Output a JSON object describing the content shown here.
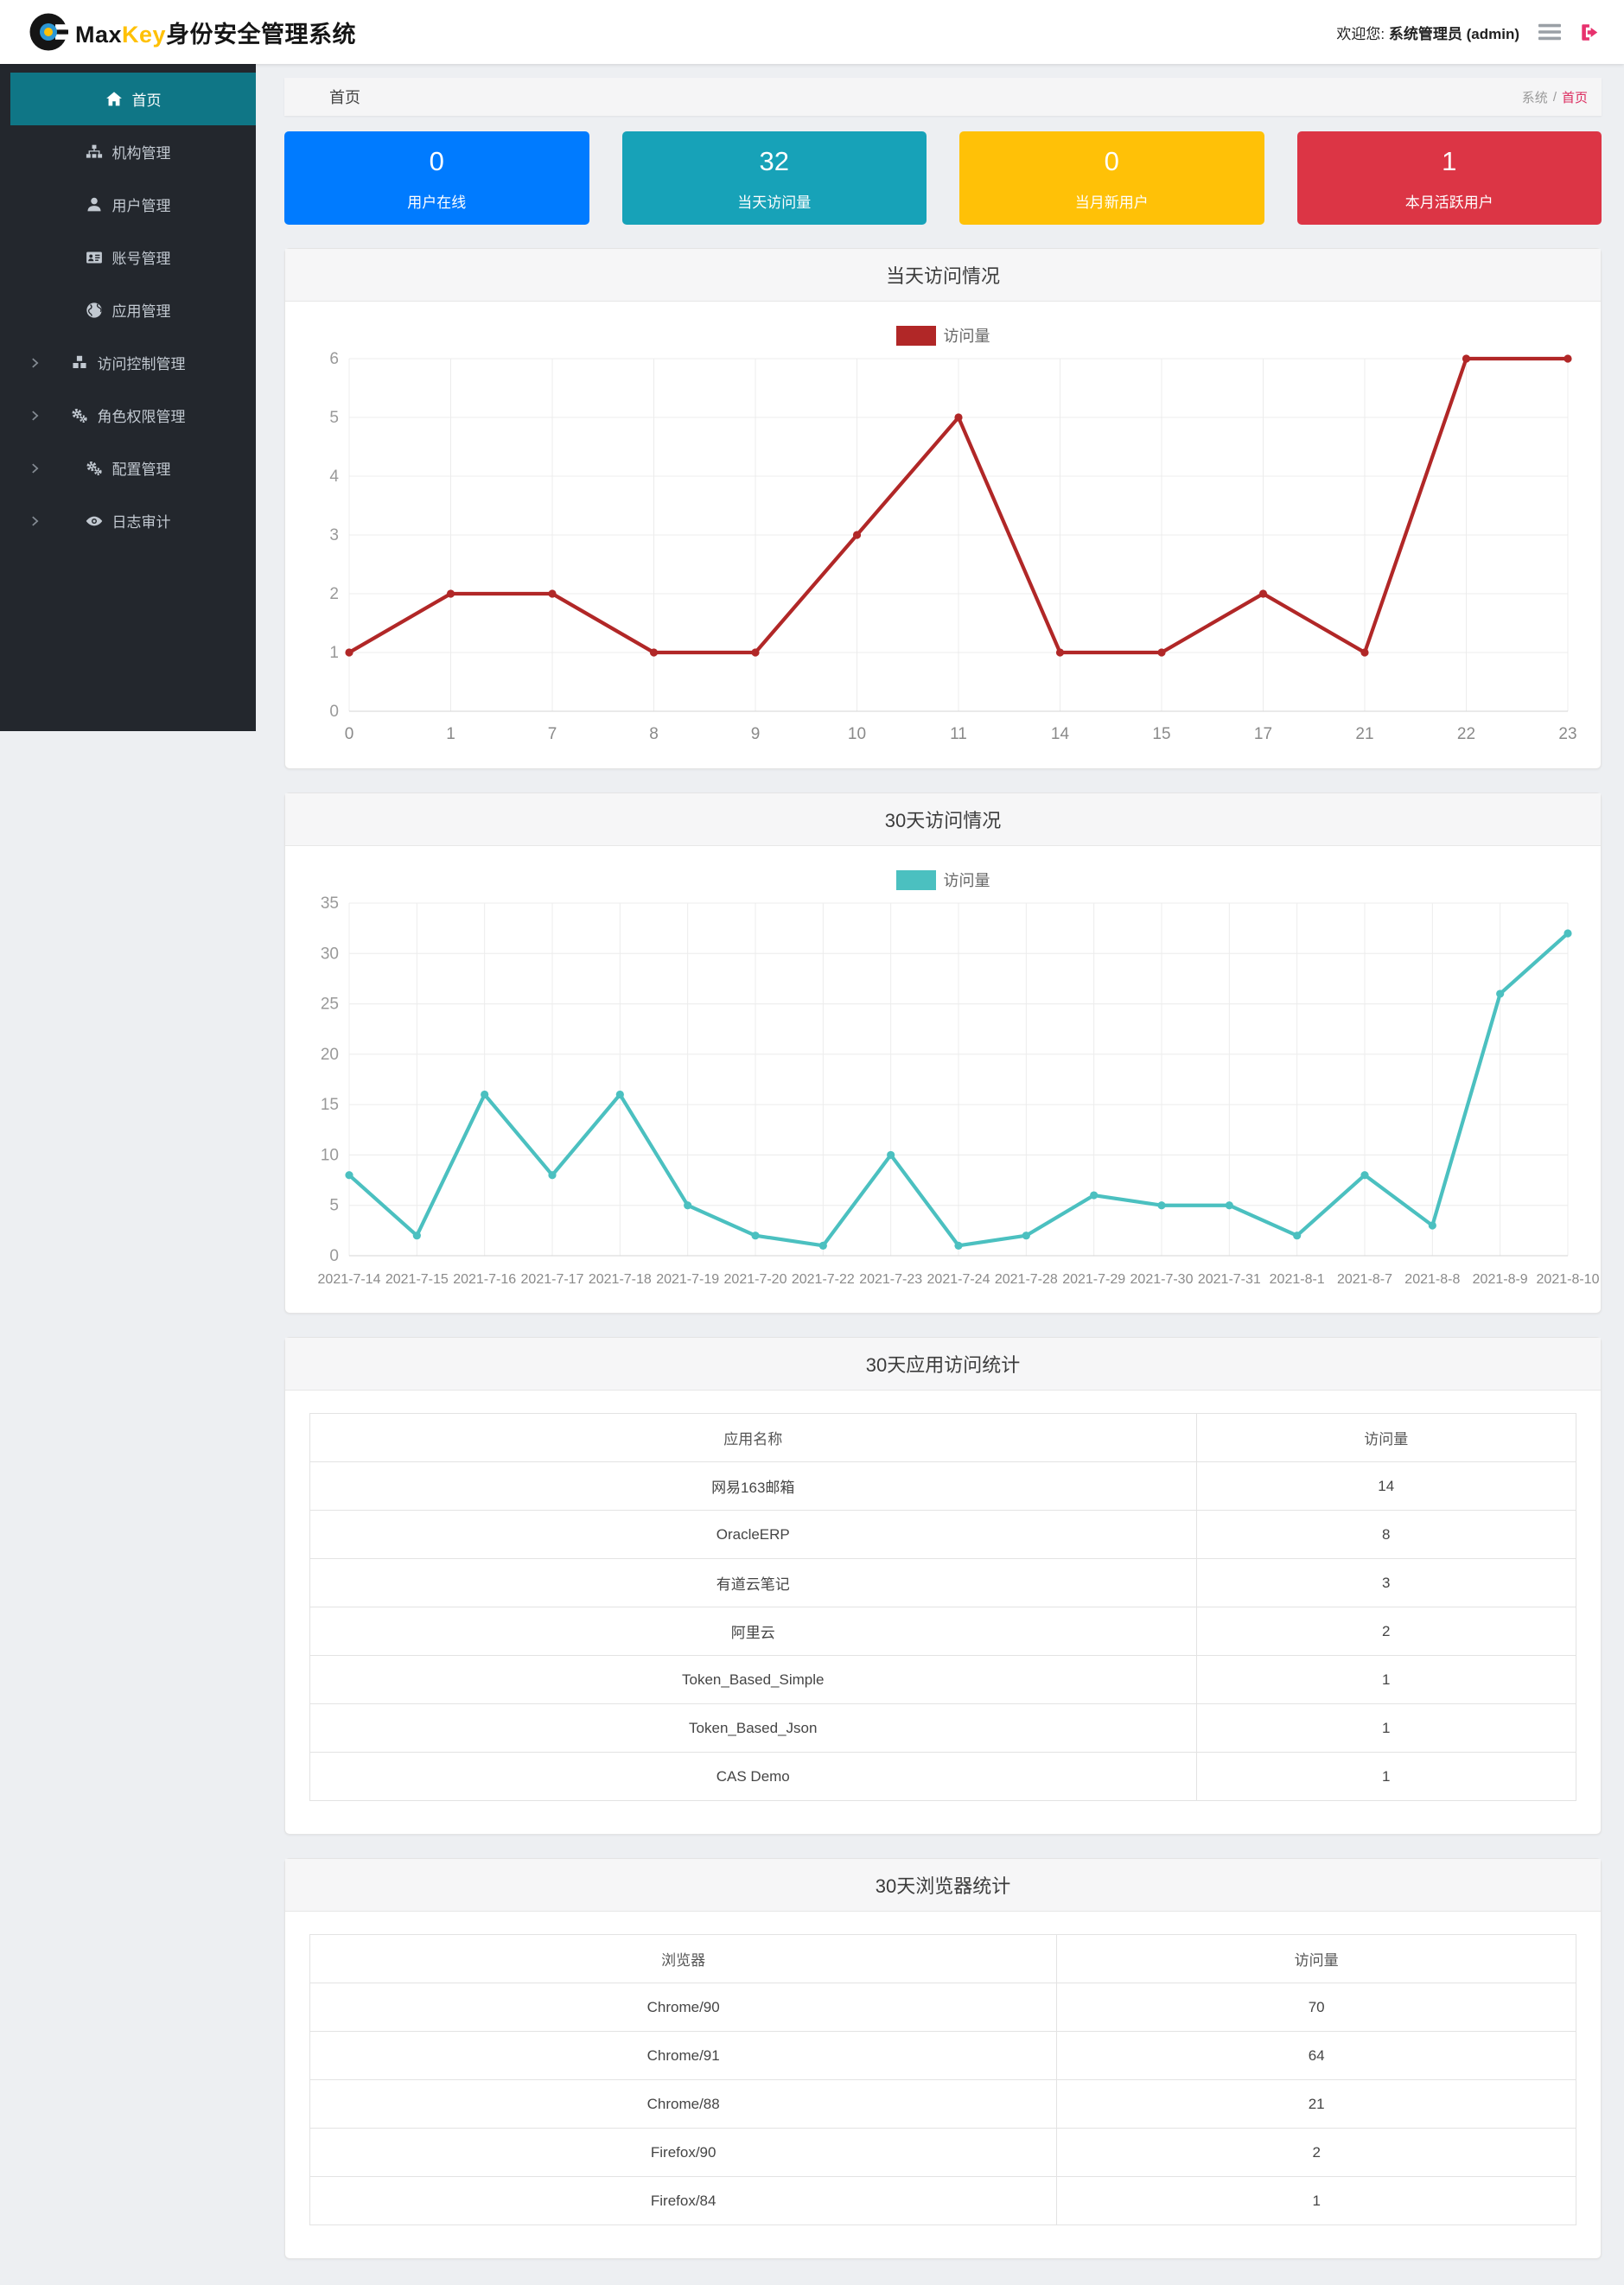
{
  "header": {
    "brand": {
      "title_black": "Max",
      "title_accent": "Key",
      "title_suffix": "身份安全管理系统",
      "accent_color": "#ffc107"
    },
    "welcome_prefix": "欢迎您:",
    "user": "系统管理员 (admin)",
    "logout_color": "#e7316d"
  },
  "sidebar": {
    "bg": "#23272d",
    "active_bg": "#0f7686",
    "items": [
      {
        "name": "sidebar-item-home",
        "label": "首页",
        "icon": "home-icon",
        "active": true,
        "expandable": false
      },
      {
        "name": "sidebar-item-organization",
        "label": "机构管理",
        "icon": "sitemap-icon",
        "active": false,
        "expandable": false
      },
      {
        "name": "sidebar-item-users",
        "label": "用户管理",
        "icon": "user-icon",
        "active": false,
        "expandable": false
      },
      {
        "name": "sidebar-item-accounts",
        "label": "账号管理",
        "icon": "id-card-icon",
        "active": false,
        "expandable": false
      },
      {
        "name": "sidebar-item-applications",
        "label": "应用管理",
        "icon": "globe-icon",
        "active": false,
        "expandable": false
      },
      {
        "name": "sidebar-item-access-control",
        "label": "访问控制管理",
        "icon": "cubes-icon",
        "active": false,
        "expandable": true
      },
      {
        "name": "sidebar-item-role-permission",
        "label": "角色权限管理",
        "icon": "cogs-icon",
        "active": false,
        "expandable": true
      },
      {
        "name": "sidebar-item-configuration",
        "label": "配置管理",
        "icon": "cogs-icon",
        "active": false,
        "expandable": true
      },
      {
        "name": "sidebar-item-audit-log",
        "label": "日志审计",
        "icon": "eye-icon",
        "active": false,
        "expandable": true
      }
    ]
  },
  "breadcrumb": {
    "page_title": "首页",
    "path_root": "系统",
    "separator": "/",
    "path_current": "首页",
    "current_color": "#dc2a5e"
  },
  "cards": [
    {
      "name": "stat-card-online-users",
      "value": "0",
      "label": "用户在线",
      "color": "#007bff"
    },
    {
      "name": "stat-card-today-visits",
      "value": "32",
      "label": "当天访问量",
      "color": "#17a2b8"
    },
    {
      "name": "stat-card-month-new-users",
      "value": "0",
      "label": "当月新用户",
      "color": "#ffc107"
    },
    {
      "name": "stat-card-month-active-users",
      "value": "1",
      "label": "本月活跃用户",
      "color": "#dc3545"
    }
  ],
  "chart_data": [
    {
      "type": "line",
      "title": "当天访问情况",
      "legend": "访问量",
      "color": "#b12727",
      "categories": [
        "0",
        "1",
        "7",
        "8",
        "9",
        "10",
        "11",
        "14",
        "15",
        "17",
        "21",
        "22",
        "23"
      ],
      "values": [
        1,
        2,
        2,
        1,
        1,
        3,
        5,
        1,
        1,
        2,
        1,
        6,
        6
      ],
      "xlabel": "",
      "ylabel": "",
      "ylim": [
        0,
        6
      ],
      "ytick_step": 1,
      "grid": true,
      "legend_position": "top",
      "tick_font": 19
    },
    {
      "type": "line",
      "title": "30天访问情况",
      "legend": "访问量",
      "color": "#4bc0c0",
      "categories": [
        "2021-7-14",
        "2021-7-15",
        "2021-7-16",
        "2021-7-17",
        "2021-7-18",
        "2021-7-19",
        "2021-7-20",
        "2021-7-22",
        "2021-7-23",
        "2021-7-24",
        "2021-7-28",
        "2021-7-29",
        "2021-7-30",
        "2021-7-31",
        "2021-8-1",
        "2021-8-7",
        "2021-8-8",
        "2021-8-9",
        "2021-8-10"
      ],
      "values": [
        8,
        2,
        16,
        8,
        16,
        5,
        2,
        1,
        10,
        1,
        2,
        6,
        5,
        5,
        2,
        8,
        3,
        26,
        32
      ],
      "xlabel": "",
      "ylabel": "",
      "ylim": [
        0,
        35
      ],
      "ytick_step": 5,
      "grid": true,
      "legend_position": "top",
      "tick_font": 16
    }
  ],
  "tables": [
    {
      "title": "30天应用访问统计",
      "headers": [
        "应用名称",
        "访问量"
      ],
      "col_split": [
        70,
        30
      ],
      "rows": [
        [
          "网易163邮箱",
          "14"
        ],
        [
          "OracleERP",
          "8"
        ],
        [
          "有道云笔记",
          "3"
        ],
        [
          "阿里云",
          "2"
        ],
        [
          "Token_Based_Simple",
          "1"
        ],
        [
          "Token_Based_Json",
          "1"
        ],
        [
          "CAS Demo",
          "1"
        ]
      ]
    },
    {
      "title": "30天浏览器统计",
      "headers": [
        "浏览器",
        "访问量"
      ],
      "col_split": [
        59,
        41
      ],
      "rows": [
        [
          "Chrome/90",
          "70"
        ],
        [
          "Chrome/91",
          "64"
        ],
        [
          "Chrome/88",
          "21"
        ],
        [
          "Firefox/90",
          "2"
        ],
        [
          "Firefox/84",
          "1"
        ]
      ]
    }
  ]
}
